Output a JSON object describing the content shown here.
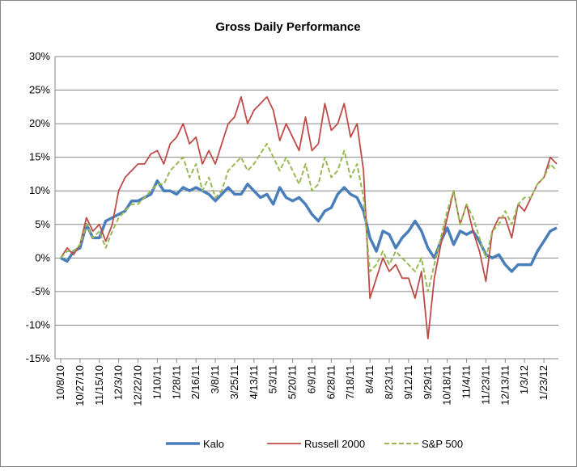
{
  "chart_data": {
    "type": "line",
    "title": "Gross Daily Performance",
    "categories": [
      "10/8/10",
      null,
      null,
      "10/27/10",
      null,
      null,
      "11/15/10",
      null,
      null,
      "12/3/10",
      null,
      null,
      "12/22/10",
      null,
      null,
      "1/10/11",
      null,
      null,
      "1/28/11",
      null,
      null,
      "2/16/11",
      null,
      null,
      "3/8/11",
      null,
      null,
      "3/25/11",
      null,
      null,
      "4/13/11",
      null,
      null,
      "5/3/11",
      null,
      null,
      "5/20/11",
      null,
      null,
      "6/9/11",
      null,
      null,
      "6/28/11",
      null,
      null,
      "7/18/11",
      null,
      null,
      "8/4/11",
      null,
      null,
      "8/23/11",
      null,
      null,
      "9/12/11",
      null,
      null,
      "9/29/11",
      null,
      null,
      "10/18/11",
      null,
      null,
      "11/4/11",
      null,
      null,
      "11/23/11",
      null,
      null,
      "12/13/11",
      null,
      null,
      "1/3/12",
      null,
      null,
      "1/23/12",
      null,
      null
    ],
    "series": [
      {
        "name": "Kalo",
        "color": "#4a7ebb",
        "width": 3.5,
        "dash": "",
        "values": [
          0,
          -0.5,
          1,
          1.5,
          5,
          3,
          3,
          5.5,
          6,
          6.5,
          7,
          8.5,
          8.5,
          9,
          9.5,
          11.5,
          10,
          10,
          9.5,
          10.5,
          10,
          10.5,
          10,
          9.5,
          8.5,
          9.5,
          10.5,
          9.5,
          9.5,
          11,
          10,
          9,
          9.5,
          8,
          10.5,
          9,
          8.5,
          9,
          8,
          6.5,
          5.5,
          7,
          7.5,
          9.5,
          10.5,
          9.5,
          9,
          7,
          3,
          1,
          4,
          3.5,
          1.5,
          3,
          4,
          5.5,
          4,
          1.5,
          0,
          2.5,
          4.5,
          2,
          4,
          3.5,
          4,
          2.5,
          0.5,
          0,
          0.5,
          -1,
          -2,
          -1,
          -1,
          -1,
          1,
          2.5,
          4,
          4.5
        ]
      },
      {
        "name": "Russell 2000",
        "color": "#be4b48",
        "width": 1.8,
        "dash": "",
        "values": [
          0,
          1.5,
          0.5,
          2,
          6,
          4,
          5,
          2.5,
          5,
          10,
          12,
          13,
          14,
          14,
          15.5,
          16,
          14,
          17,
          18,
          20,
          17,
          18,
          14,
          16,
          14,
          17,
          20,
          21,
          24,
          20,
          22,
          23,
          24,
          22,
          17.5,
          20,
          18,
          16,
          21,
          16,
          17,
          23,
          19,
          20,
          23,
          18,
          20,
          13,
          -6,
          -3,
          0,
          -2,
          -1,
          -3,
          -3,
          -6,
          -2,
          -12,
          -3,
          2,
          6,
          10,
          5,
          8,
          4,
          1,
          -3.5,
          4,
          6,
          6,
          3,
          8,
          7,
          9,
          11,
          12,
          15,
          14
        ]
      },
      {
        "name": "S&P 500",
        "color": "#98b954",
        "width": 2,
        "dash": "6,3",
        "values": [
          0,
          1,
          1,
          2,
          5,
          3,
          4,
          1.5,
          4,
          6,
          7,
          8,
          8,
          9,
          10,
          11,
          11,
          13,
          14,
          15,
          12,
          14,
          10,
          12,
          9,
          10,
          13,
          14,
          15,
          13,
          14,
          15.5,
          17,
          15,
          13,
          15,
          13,
          11,
          14,
          10,
          11,
          15,
          12,
          13,
          16,
          12,
          14,
          9,
          -2,
          -1,
          1,
          -1,
          1,
          0,
          -1,
          -2,
          0,
          -5,
          -1,
          3,
          7,
          10,
          5,
          8,
          6,
          3,
          0,
          4,
          5,
          7,
          5,
          8,
          9,
          9,
          11,
          12,
          14,
          13
        ]
      }
    ],
    "ylim": [
      -15,
      30
    ],
    "yticks": [
      {
        "value": -15,
        "label": "-15%"
      },
      {
        "value": -10,
        "label": "-10%"
      },
      {
        "value": -5,
        "label": "-5%"
      },
      {
        "value": 0,
        "label": "0%"
      },
      {
        "value": 5,
        "label": "5%"
      },
      {
        "value": 10,
        "label": "10%"
      },
      {
        "value": 15,
        "label": "15%"
      },
      {
        "value": 20,
        "label": "20%"
      },
      {
        "value": 25,
        "label": "25%"
      },
      {
        "value": 30,
        "label": "30%"
      }
    ],
    "grid": true,
    "legend": "bottom"
  }
}
